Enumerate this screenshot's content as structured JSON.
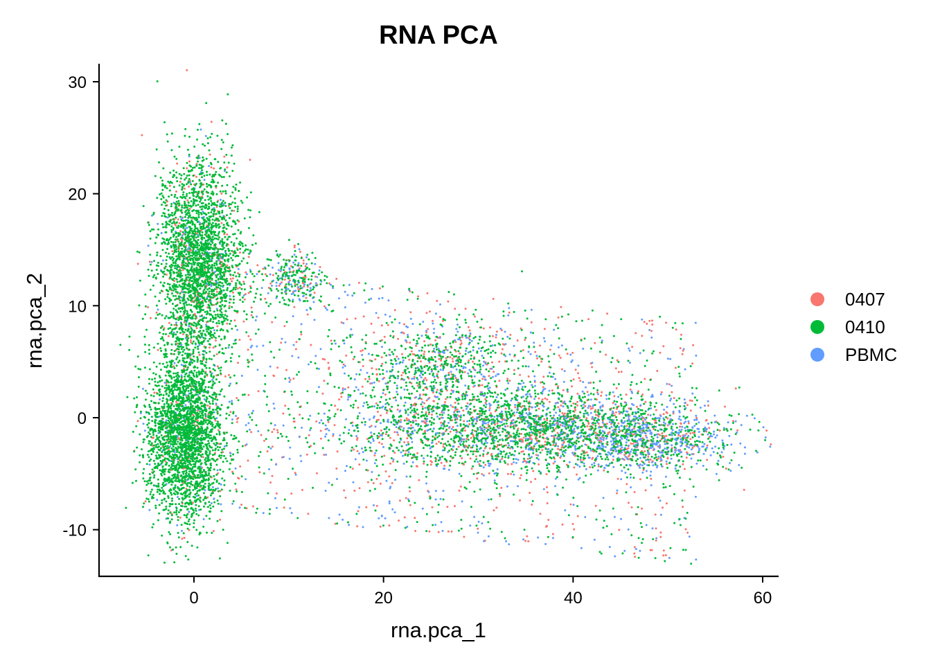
{
  "chart_data": {
    "type": "scatter",
    "title": "RNA PCA",
    "xlabel": "rna.pca_1",
    "ylabel": "rna.pca_2",
    "xlim": [
      -10,
      62
    ],
    "ylim": [
      -14,
      31.5
    ],
    "x_ticks": [
      0,
      20,
      40,
      60
    ],
    "x_tick_labels": [
      "0",
      "20",
      "40",
      "60"
    ],
    "y_ticks": [
      -10,
      0,
      10,
      20,
      30
    ],
    "y_tick_labels": [
      "-10",
      "0",
      "10",
      "20",
      "30"
    ],
    "grid": false,
    "legend_position": "right",
    "series": [
      {
        "name": "0407",
        "color": "#F8766D",
        "point_count_approx": 30000
      },
      {
        "name": "0410",
        "color": "#00BA38",
        "point_count_approx": 60000
      },
      {
        "name": "PBMC",
        "color": "#619CFF",
        "point_count_approx": 25000
      }
    ],
    "clusters": [
      {
        "center": [
          0.5,
          14
        ],
        "spread": [
          2.2,
          4.5
        ],
        "composition": {
          "0407": 0.1,
          "0410": 0.85,
          "PBMC": 0.05
        }
      },
      {
        "center": [
          -1,
          -1.5
        ],
        "spread": [
          2.0,
          3.8
        ],
        "composition": {
          "0407": 0.05,
          "0410": 0.9,
          "PBMC": 0.05
        }
      },
      {
        "center": [
          10.5,
          12.5
        ],
        "spread": [
          1.6,
          1.2
        ],
        "composition": {
          "0407": 0.2,
          "0410": 0.55,
          "PBMC": 0.25
        }
      },
      {
        "center": [
          35,
          -1
        ],
        "spread": [
          9,
          1.8
        ],
        "composition": {
          "0407": 0.2,
          "0410": 0.55,
          "PBMC": 0.25
        }
      },
      {
        "center": [
          26,
          4.5
        ],
        "spread": [
          4.5,
          2.0
        ],
        "composition": {
          "0407": 0.2,
          "0410": 0.6,
          "PBMC": 0.2
        }
      },
      {
        "center": [
          48,
          -2
        ],
        "spread": [
          4.5,
          1.4
        ],
        "composition": {
          "0407": 0.2,
          "0410": 0.25,
          "PBMC": 0.55
        }
      }
    ]
  }
}
